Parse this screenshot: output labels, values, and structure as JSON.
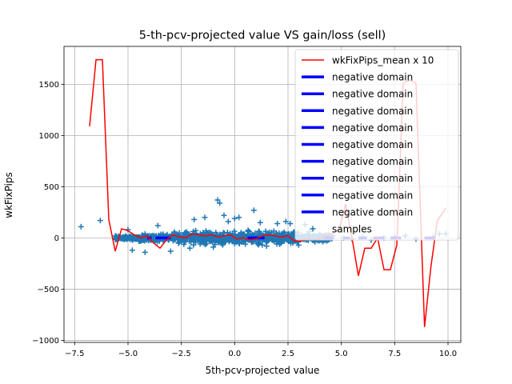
{
  "chart_data": {
    "type": "line+scatter",
    "title": "5-th-pcv-projected value VS gain/loss (sell)",
    "xlabel": "5th-pcv-projected value",
    "ylabel": "wkFixPips",
    "xlim": [
      -8.0,
      10.6
    ],
    "ylim": [
      -1020,
      1870
    ],
    "xticks": [
      -7.5,
      -5.0,
      -2.5,
      0.0,
      2.5,
      5.0,
      7.5,
      10.0
    ],
    "xtick_labels": [
      "−7.5",
      "−5.0",
      "−2.5",
      "0.0",
      "2.5",
      "5.0",
      "7.5",
      "10.0"
    ],
    "yticks": [
      -1000,
      -500,
      0,
      500,
      1000,
      1500
    ],
    "ytick_labels": [
      "−1000",
      "−500",
      "0",
      "500",
      "1000",
      "1500"
    ],
    "grid": true,
    "legend_position": "top-right",
    "colors": {
      "mean_line": "#ff0000",
      "negative_domain": "#0000ff",
      "samples": "#1f77b4"
    },
    "legend": [
      {
        "label": "wkFixPips_mean x 10",
        "kind": "line",
        "color": "#ff0000"
      },
      {
        "label": "negative domain",
        "kind": "thick-line",
        "color": "#0000ff"
      },
      {
        "label": "negative domain",
        "kind": "thick-line",
        "color": "#0000ff"
      },
      {
        "label": "negative domain",
        "kind": "thick-line",
        "color": "#0000ff"
      },
      {
        "label": "negative domain",
        "kind": "thick-line",
        "color": "#0000ff"
      },
      {
        "label": "negative domain",
        "kind": "thick-line",
        "color": "#0000ff"
      },
      {
        "label": "negative domain",
        "kind": "thick-line",
        "color": "#0000ff"
      },
      {
        "label": "negative domain",
        "kind": "thick-line",
        "color": "#0000ff"
      },
      {
        "label": "negative domain",
        "kind": "thick-line",
        "color": "#0000ff"
      },
      {
        "label": "negative domain",
        "kind": "thick-line",
        "color": "#0000ff"
      },
      {
        "label": "samples",
        "kind": "marker",
        "color": "#1f77b4"
      }
    ],
    "mean_line": {
      "x": [
        -6.8,
        -6.5,
        -6.2,
        -5.9,
        -5.6,
        -5.3,
        -5.0,
        -4.7,
        -4.4,
        -4.1,
        -3.8,
        -3.5,
        -3.2,
        -2.9,
        -2.6,
        -2.3,
        -2.0,
        -1.7,
        -1.4,
        -1.1,
        -0.8,
        -0.5,
        -0.2,
        0.1,
        0.4,
        0.7,
        1.0,
        1.3,
        1.6,
        1.9,
        2.2,
        2.5,
        2.8,
        3.1,
        3.4,
        3.7,
        4.0,
        4.3,
        4.6,
        4.9,
        5.2,
        5.5,
        5.8,
        6.1,
        6.4,
        6.7,
        7.0,
        7.3,
        7.6,
        7.9,
        8.2,
        8.5,
        8.9,
        9.2,
        9.5,
        9.9
      ],
      "y": [
        1090,
        1740,
        1740,
        180,
        -130,
        90,
        70,
        30,
        0,
        20,
        -50,
        -100,
        -20,
        30,
        10,
        0,
        40,
        30,
        20,
        30,
        10,
        20,
        30,
        -10,
        0,
        -20,
        -10,
        20,
        30,
        20,
        10,
        20,
        -30,
        -30,
        -10,
        -20,
        0,
        20,
        50,
        80,
        330,
        0,
        -370,
        -100,
        -100,
        0,
        -310,
        -310,
        -70,
        1510,
        1540,
        1510,
        -870,
        -280,
        170,
        290
      ]
    },
    "negative_domains": [
      {
        "x": [
          -4.1,
          -3.9
        ]
      },
      {
        "x": [
          -3.7,
          -3.0
        ]
      },
      {
        "x": [
          0.6,
          1.4
        ]
      },
      {
        "x": [
          4.2,
          4.6
        ]
      },
      {
        "x": [
          5.1,
          5.4
        ]
      },
      {
        "x": [
          5.8,
          6.2
        ]
      },
      {
        "x": [
          6.5,
          7.0
        ]
      },
      {
        "x": [
          7.3,
          7.8
        ]
      },
      {
        "x": [
          8.9,
          9.4
        ]
      }
    ],
    "samples_outliers": [
      {
        "x": -7.2,
        "y": 110
      },
      {
        "x": -6.3,
        "y": 170
      },
      {
        "x": -5.6,
        "y": 20
      },
      {
        "x": -5.0,
        "y": 80
      },
      {
        "x": -4.8,
        "y": -120
      },
      {
        "x": -4.2,
        "y": -140
      },
      {
        "x": -3.6,
        "y": 120
      },
      {
        "x": -3.0,
        "y": -130
      },
      {
        "x": -2.1,
        "y": -100
      },
      {
        "x": -1.9,
        "y": 180
      },
      {
        "x": -1.4,
        "y": 200
      },
      {
        "x": -1.0,
        "y": -90
      },
      {
        "x": -0.8,
        "y": 370
      },
      {
        "x": -0.7,
        "y": 340
      },
      {
        "x": -0.5,
        "y": 220
      },
      {
        "x": -0.3,
        "y": 160
      },
      {
        "x": 0.0,
        "y": 190
      },
      {
        "x": 0.2,
        "y": 200
      },
      {
        "x": 0.5,
        "y": -60
      },
      {
        "x": 0.9,
        "y": 270
      },
      {
        "x": 1.2,
        "y": 150
      },
      {
        "x": 1.5,
        "y": -80
      },
      {
        "x": 2.0,
        "y": 140
      },
      {
        "x": 2.4,
        "y": 160
      },
      {
        "x": 2.6,
        "y": 140
      },
      {
        "x": 2.1,
        "y": -60
      },
      {
        "x": 3.0,
        "y": -70
      },
      {
        "x": 3.3,
        "y": 130
      },
      {
        "x": 3.5,
        "y": 60
      },
      {
        "x": 3.9,
        "y": 10
      },
      {
        "x": 4.3,
        "y": 30
      },
      {
        "x": 4.6,
        "y": 20
      },
      {
        "x": 5.1,
        "y": 0
      },
      {
        "x": 5.5,
        "y": -10
      },
      {
        "x": 6.0,
        "y": 10
      },
      {
        "x": 6.4,
        "y": -20
      },
      {
        "x": 7.0,
        "y": 0
      },
      {
        "x": 7.5,
        "y": 10
      },
      {
        "x": 8.0,
        "y": 20
      },
      {
        "x": 8.5,
        "y": -10
      },
      {
        "x": 9.3,
        "y": 10
      },
      {
        "x": 9.6,
        "y": 40
      },
      {
        "x": 9.9,
        "y": 40
      }
    ]
  }
}
